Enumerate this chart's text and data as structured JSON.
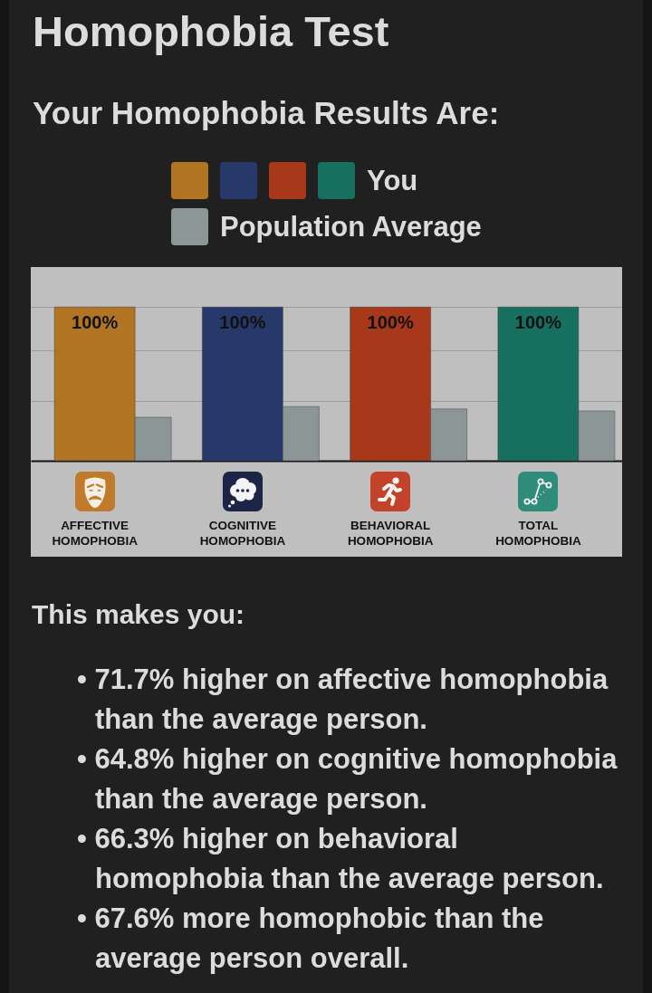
{
  "chart_data": {
    "type": "bar",
    "title": "Homophobia Test",
    "subtitle": "Your Homophobia Results Are:",
    "categories": [
      "AFFECTIVE HOMOPHOBIA",
      "COGNITIVE HOMOPHOBIA",
      "BEHAVIORAL HOMOPHOBIA",
      "TOTAL HOMOPHOBIA"
    ],
    "series": [
      {
        "name": "You",
        "colors": [
          "#b07422",
          "#27396a",
          "#a8381a",
          "#17705f"
        ],
        "values": [
          100,
          100,
          100,
          100
        ],
        "value_labels": [
          "100%",
          "100%",
          "100%",
          "100%"
        ]
      },
      {
        "name": "Population Average",
        "color": "#8d9696",
        "values": [
          28.3,
          35.2,
          33.7,
          32.4
        ]
      }
    ],
    "ylim": [
      0,
      126
    ],
    "yticks": [
      {
        "value": 39,
        "label": null
      },
      {
        "value": 72,
        "label": null
      },
      {
        "value": 100,
        "label": null
      }
    ],
    "grid": "y",
    "tick_labels": "x",
    "legend": "top",
    "annotations": [
      "This makes you:",
      "• 71.7% higher on affective homophobia than the average person.",
      "• 64.8% higher on cognitive homophobia than the average person.",
      "• 66.3% higher on behavioral homophobia than the average person.",
      "• 67.6% more homophobic than the average person overall."
    ]
  }
}
